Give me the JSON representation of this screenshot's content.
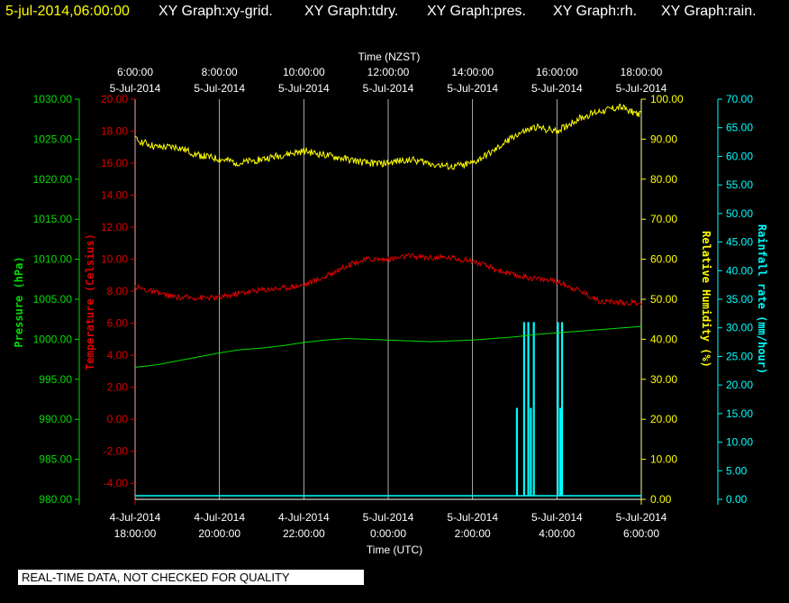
{
  "header": {
    "date": "5-jul-2014,06:00:00",
    "graphs": [
      "XY Graph:xy-grid.",
      "XY Graph:tdry.",
      "XY Graph:pres.",
      "XY Graph:rh.",
      "XY Graph:rain."
    ]
  },
  "notice": "REAL-TIME DATA, NOT CHECKED FOR QUALITY",
  "colors": {
    "background": "#000000",
    "header_date": "#ffff00",
    "header_text": "#ffffff",
    "pressure": "#00dd00",
    "temperature": "#dd0000",
    "humidity": "#ffff00",
    "rain": "#00ffff",
    "grid": "#ffffff"
  },
  "chart_data": {
    "type": "line",
    "top_axis": {
      "label": "Time (NZST)",
      "ticks": [
        {
          "time": "6:00:00",
          "date": "5-Jul-2014"
        },
        {
          "time": "8:00:00",
          "date": "5-Jul-2014"
        },
        {
          "time": "10:00:00",
          "date": "5-Jul-2014"
        },
        {
          "time": "12:00:00",
          "date": "5-Jul-2014"
        },
        {
          "time": "14:00:00",
          "date": "5-Jul-2014"
        },
        {
          "time": "16:00:00",
          "date": "5-Jul-2014"
        },
        {
          "time": "18:00:00",
          "date": "5-Jul-2014"
        }
      ]
    },
    "bottom_axis": {
      "label": "Time (UTC)",
      "ticks": [
        {
          "date": "4-Jul-2014",
          "time": "18:00:00"
        },
        {
          "date": "4-Jul-2014",
          "time": "20:00:00"
        },
        {
          "date": "4-Jul-2014",
          "time": "22:00:00"
        },
        {
          "date": "5-Jul-2014",
          "time": "0:00:00"
        },
        {
          "date": "5-Jul-2014",
          "time": "2:00:00"
        },
        {
          "date": "5-Jul-2014",
          "time": "4:00:00"
        },
        {
          "date": "5-Jul-2014",
          "time": "6:00:00"
        }
      ]
    },
    "x_range_hours_utc": [
      18,
      30
    ],
    "pressure_axis": {
      "label": "Pressure (hPa)",
      "range": [
        980,
        1030
      ],
      "ticks": [
        "980.00",
        "985.00",
        "990.00",
        "995.00",
        "1000.00",
        "1005.00",
        "1010.00",
        "1015.00",
        "1020.00",
        "1025.00",
        "1030.00"
      ]
    },
    "temperature_axis": {
      "label": "Temperature (Celsius)",
      "range": [
        -5,
        20
      ],
      "ticks": [
        "-4.00",
        "-2.00",
        "0.00",
        "2.00",
        "4.00",
        "6.00",
        "8.00",
        "10.00",
        "12.00",
        "14.00",
        "16.00",
        "18.00",
        "20.00"
      ]
    },
    "humidity_axis": {
      "label": "Relative Humidity (%)",
      "range": [
        0,
        100
      ],
      "ticks": [
        "0.00",
        "10.00",
        "20.00",
        "30.00",
        "40.00",
        "50.00",
        "60.00",
        "70.00",
        "80.00",
        "90.00",
        "100.00"
      ]
    },
    "rain_axis": {
      "label": "Rainfall rate (mm/hour)",
      "range": [
        0,
        70
      ],
      "ticks": [
        "0.00",
        "5.00",
        "10.00",
        "15.00",
        "20.00",
        "25.00",
        "30.00",
        "35.00",
        "40.00",
        "45.00",
        "50.00",
        "55.00",
        "60.00",
        "65.00",
        "70.00"
      ]
    },
    "series": [
      {
        "name": "pres",
        "axis": "pressure",
        "x": [
          18.0,
          18.5,
          19.0,
          19.5,
          20.0,
          20.5,
          21.0,
          21.5,
          22.0,
          22.5,
          23.0,
          23.5,
          24.0,
          24.5,
          25.0,
          25.5,
          26.0,
          26.5,
          27.0,
          27.5,
          28.0,
          28.5,
          29.0,
          29.5,
          30.0
        ],
        "y": [
          996.5,
          996.8,
          997.3,
          997.8,
          998.3,
          998.7,
          998.9,
          999.2,
          999.6,
          999.9,
          1000.1,
          1000.0,
          999.9,
          999.8,
          999.7,
          999.8,
          999.9,
          1000.1,
          1000.3,
          1000.6,
          1000.8,
          1001.0,
          1001.2,
          1001.4,
          1001.6
        ]
      },
      {
        "name": "tdry",
        "axis": "temperature",
        "x": [
          18.0,
          18.5,
          19.0,
          19.5,
          20.0,
          20.5,
          21.0,
          21.5,
          22.0,
          22.5,
          23.0,
          23.5,
          24.0,
          24.5,
          25.0,
          25.5,
          26.0,
          26.5,
          27.0,
          27.5,
          28.0,
          28.5,
          29.0,
          29.5,
          30.0
        ],
        "y": [
          8.3,
          7.9,
          7.6,
          7.6,
          7.6,
          7.9,
          8.1,
          8.2,
          8.4,
          8.9,
          9.6,
          10.0,
          10.0,
          10.2,
          10.1,
          10.1,
          9.9,
          9.4,
          9.0,
          8.8,
          8.6,
          8.1,
          7.4,
          7.3,
          7.3
        ]
      },
      {
        "name": "rh",
        "axis": "humidity",
        "x": [
          18.0,
          18.5,
          19.0,
          19.5,
          20.0,
          20.5,
          21.0,
          21.5,
          22.0,
          22.5,
          23.0,
          23.5,
          24.0,
          24.5,
          25.0,
          25.5,
          26.0,
          26.5,
          27.0,
          27.5,
          28.0,
          28.5,
          29.0,
          29.5,
          30.0
        ],
        "y": [
          90,
          88,
          88,
          86,
          85,
          84,
          85,
          86,
          87,
          86,
          85,
          84,
          84,
          85,
          84,
          83,
          84,
          87,
          91,
          93,
          92,
          95,
          97,
          98,
          96
        ]
      }
    ],
    "rain_bars": [
      {
        "x": 27.05,
        "value": 16
      },
      {
        "x": 27.22,
        "value": 31
      },
      {
        "x": 27.32,
        "value": 31
      },
      {
        "x": 27.38,
        "value": 16
      },
      {
        "x": 27.45,
        "value": 31
      },
      {
        "x": 28.02,
        "value": 31
      },
      {
        "x": 28.08,
        "value": 16
      },
      {
        "x": 28.12,
        "value": 31
      }
    ]
  }
}
